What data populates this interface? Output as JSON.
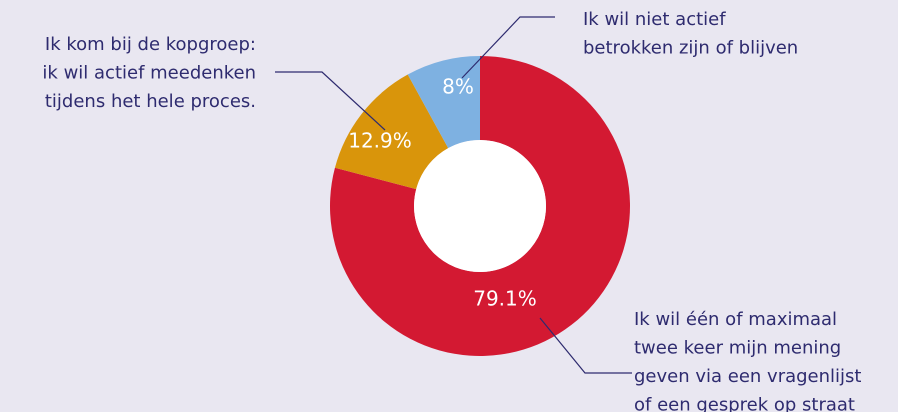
{
  "chart_data": {
    "type": "donut",
    "categories": [
      [
        "Ik wil één of maximaal",
        "twee keer mijn mening",
        "geven via een vragenlijst",
        "of een gesprek op straat"
      ],
      [
        "Ik kom bij de kopgroep:",
        "ik wil actief meedenken",
        "tijdens het hele proces."
      ],
      [
        "Ik wil niet actief",
        "betrokken zijn of blijven"
      ]
    ],
    "values": [
      79.1,
      12.9,
      8
    ],
    "value_labels": [
      "79.1%",
      "12.9%",
      "8%"
    ],
    "colors": [
      "#d31932",
      "#d9950b",
      "#7eb1e1"
    ]
  }
}
